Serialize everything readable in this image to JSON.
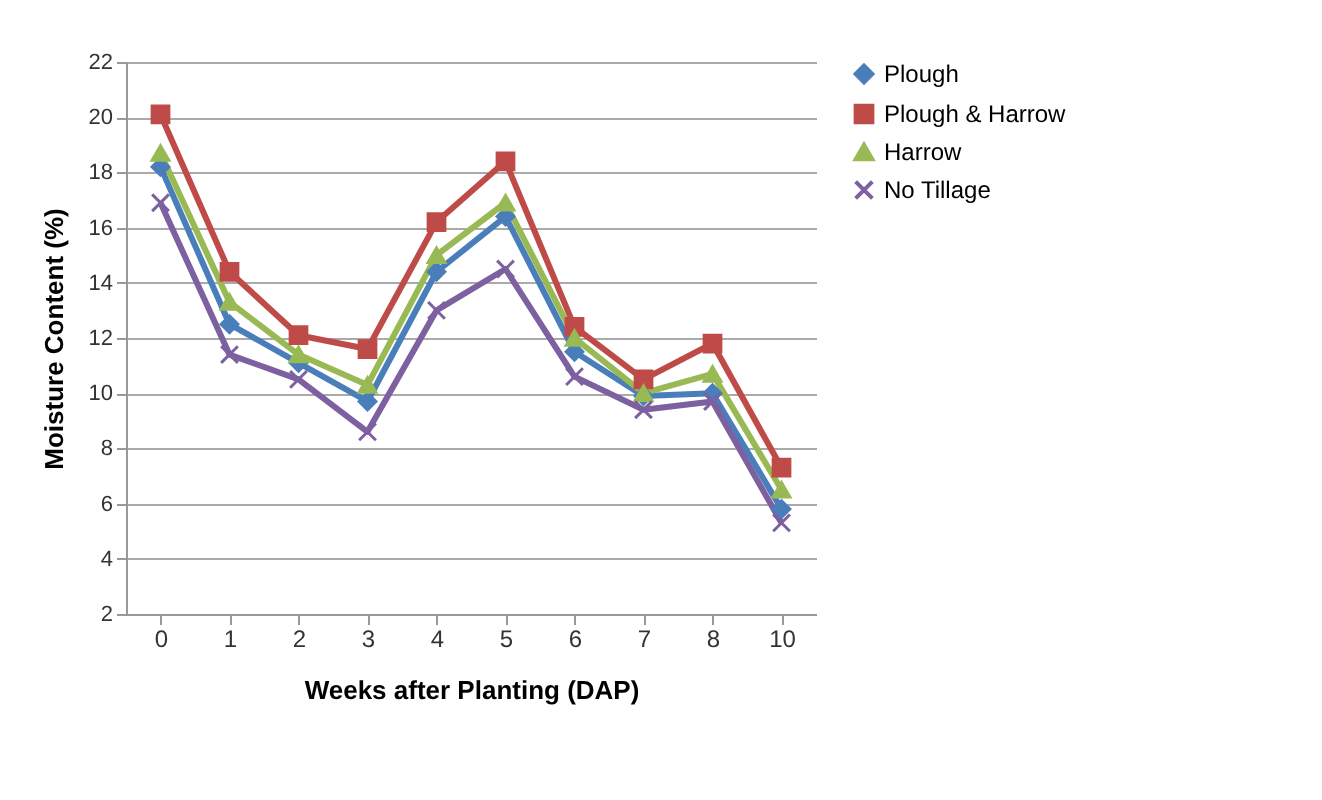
{
  "chart_data": {
    "type": "line",
    "xlabel": "Weeks after Planting (DAP)",
    "ylabel": "Moisture Content (%)",
    "categories": [
      "0",
      "1",
      "2",
      "3",
      "4",
      "5",
      "6",
      "7",
      "8",
      "10"
    ],
    "series": [
      {
        "name": "Plough",
        "color": "#4a7ebb",
        "marker": "diamond",
        "values": [
          18.2,
          12.5,
          11.1,
          9.7,
          14.4,
          16.4,
          11.5,
          9.9,
          10.0,
          5.8
        ]
      },
      {
        "name": "Plough  & Harrow",
        "color": "#be4b48",
        "marker": "square",
        "values": [
          20.1,
          14.4,
          12.1,
          11.6,
          16.2,
          18.4,
          12.4,
          10.5,
          11.8,
          7.3
        ]
      },
      {
        "name": "Harrow",
        "color": "#98b954",
        "marker": "triangle",
        "values": [
          18.7,
          13.3,
          11.4,
          10.3,
          15.0,
          16.9,
          12.0,
          10.0,
          10.7,
          6.5
        ]
      },
      {
        "name": "No Tillage",
        "color": "#7d60a0",
        "marker": "cross",
        "values": [
          16.9,
          11.4,
          10.5,
          8.6,
          13.0,
          14.5,
          10.6,
          9.4,
          9.7,
          5.3
        ]
      }
    ],
    "ylim": [
      2,
      22
    ],
    "yticks": [
      2,
      4,
      6,
      8,
      10,
      12,
      14,
      16,
      18,
      20,
      22
    ],
    "grid": "y",
    "legend": "top right",
    "line_style": "solid"
  }
}
